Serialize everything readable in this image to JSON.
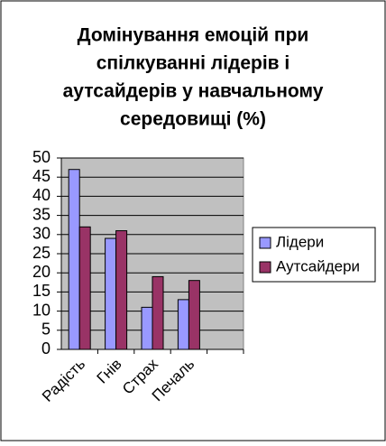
{
  "chart_data": {
    "type": "bar",
    "title": [
      "Домінування емоцій при",
      "спілкуванні лідерів і",
      "аутсайдерів у навчальному",
      "середовищі (%)"
    ],
    "categories": [
      "Радість",
      "Гнів",
      "Страх",
      "Печаль",
      null
    ],
    "series": [
      {
        "name": "Лідери",
        "color": "#9999ff",
        "values": [
          47,
          29,
          11,
          13,
          null
        ]
      },
      {
        "name": "Аутсайдери",
        "color": "#993366",
        "values": [
          32,
          31,
          19,
          18,
          null
        ]
      }
    ],
    "ylim": [
      0,
      50
    ],
    "yticks": [
      0,
      5,
      10,
      15,
      20,
      25,
      30,
      35,
      40,
      45,
      50
    ],
    "grid": true,
    "plot_background": "#c0c0c0",
    "legend": "right"
  }
}
